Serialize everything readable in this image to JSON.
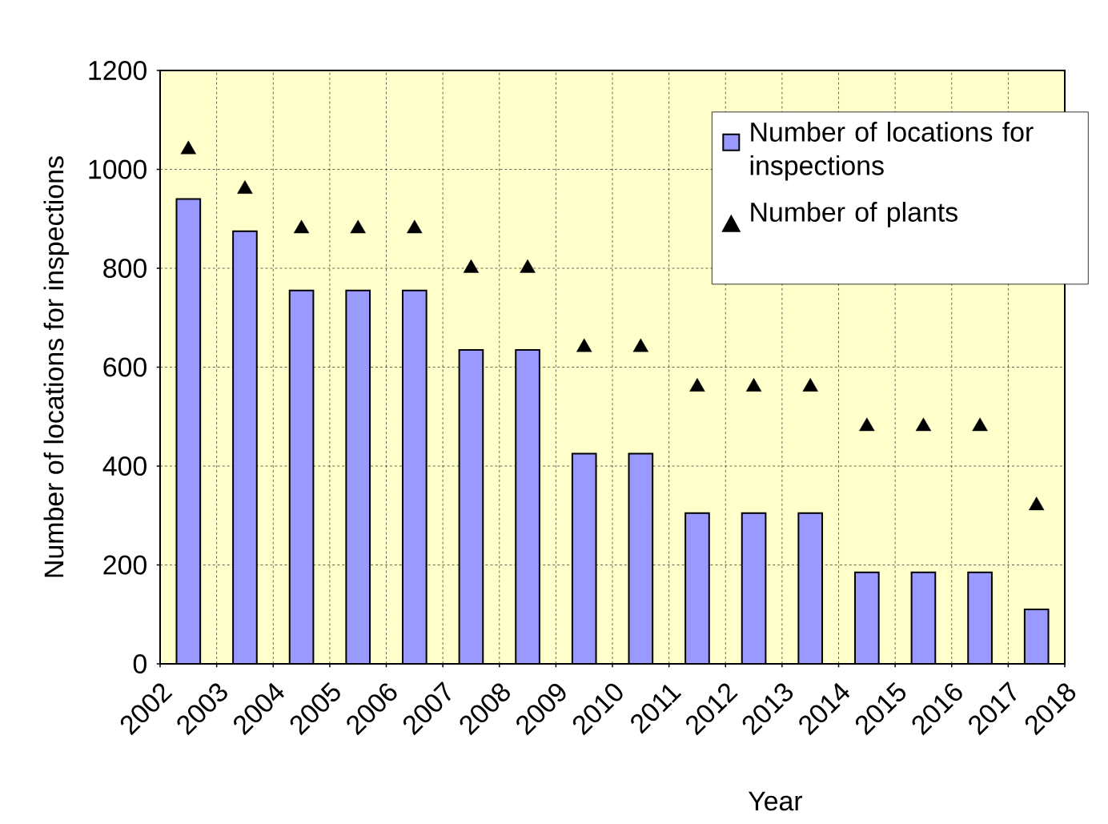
{
  "chart_data": {
    "type": "bar",
    "xlabel": "Year",
    "ylabel": "Number of locations for inspections",
    "xlim": [
      2002,
      2018
    ],
    "xticks": [
      2002,
      2003,
      2004,
      2005,
      2006,
      2007,
      2008,
      2009,
      2010,
      2011,
      2012,
      2013,
      2014,
      2015,
      2016,
      2017,
      2018
    ],
    "ylim": [
      0,
      1200
    ],
    "yticks": [
      0,
      200,
      400,
      600,
      800,
      1000,
      1200
    ],
    "grid": true,
    "legend": "top right",
    "series": [
      {
        "name": "Number of locations for inspections",
        "color": "#9999ff",
        "x": [
          2002.5,
          2003.5,
          2004.5,
          2005.5,
          2006.5,
          2007.5,
          2008.5,
          2009.5,
          2010.5,
          2011.5,
          2012.5,
          2013.5,
          2014.5,
          2015.5,
          2016.5,
          2017.5
        ],
        "values": [
          940,
          875,
          755,
          755,
          755,
          635,
          635,
          425,
          425,
          305,
          305,
          305,
          185,
          185,
          185,
          110
        ]
      },
      {
        "name": "Number of plants",
        "type": "scatter",
        "color": "#000000",
        "marker": "triangle",
        "x": [
          2002.5,
          2003.5,
          2004.5,
          2005.5,
          2006.5,
          2007.5,
          2008.5,
          2009.5,
          2010.5,
          2011.5,
          2012.5,
          2013.5,
          2014.5,
          2015.5,
          2016.5,
          2017.5
        ],
        "values": [
          1040,
          960,
          880,
          880,
          880,
          800,
          800,
          640,
          640,
          560,
          560,
          560,
          480,
          480,
          480,
          320
        ]
      }
    ]
  }
}
